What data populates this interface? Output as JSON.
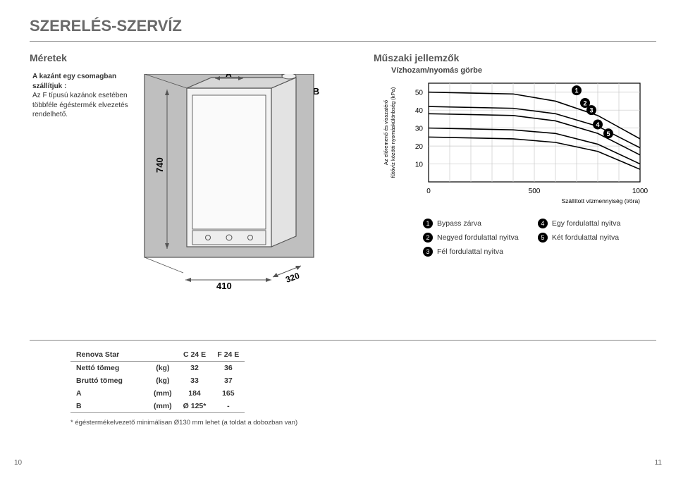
{
  "page_title": "SZERELÉS-SZERVÍZ",
  "section_left": "Méretek",
  "section_right": "Műszaki jellemzők",
  "subtitle_right": "Vízhozam/nyomás görbe",
  "intro_html_parts": {
    "bold1": "A kazánt egy csomagban",
    "bold2": "szállítjuk :",
    "rest": "Az F típusú kazánok esetében többféle égéstermék elvezetés rendelhető."
  },
  "ob_label": "Ø B",
  "diagram": {
    "height_label": "740",
    "depth_label": "320",
    "width_label": "410",
    "a_label": "A",
    "stroke": "#555555",
    "fill_light": "#efefef",
    "fill_mid": "#d9d9d9"
  },
  "chart": {
    "y_label": "Az előremenő és visszatérő\nfűtővíz közötti nyomáskülönbség (kPa)",
    "x_label": "Szállított vízmennyiség (l/óra)",
    "y_ticks": [
      10,
      20,
      30,
      40,
      50
    ],
    "x_ticks": [
      0,
      500,
      1000
    ],
    "xlim": [
      0,
      1000
    ],
    "ylim": [
      0,
      55
    ],
    "grid_color": "#c8c8c8",
    "axis_color": "#000000",
    "curve_color": "#000000",
    "curve_width": 1.6,
    "label_fontsize": 8,
    "tick_fontsize": 10,
    "curves": [
      {
        "badge": "1",
        "bx": 700,
        "by": 51,
        "points": [
          [
            0,
            50
          ],
          [
            400,
            49
          ],
          [
            600,
            45
          ],
          [
            800,
            37
          ],
          [
            1000,
            24
          ]
        ]
      },
      {
        "badge": "2",
        "bx": 740,
        "by": 44,
        "points": [
          [
            0,
            42
          ],
          [
            400,
            41
          ],
          [
            600,
            38
          ],
          [
            800,
            31
          ],
          [
            1000,
            19
          ]
        ]
      },
      {
        "badge": "3",
        "bx": 770,
        "by": 40,
        "points": [
          [
            0,
            38
          ],
          [
            400,
            37
          ],
          [
            600,
            34
          ],
          [
            800,
            27
          ],
          [
            1000,
            15
          ]
        ]
      },
      {
        "badge": "4",
        "bx": 800,
        "by": 32,
        "points": [
          [
            0,
            30
          ],
          [
            400,
            29
          ],
          [
            600,
            27
          ],
          [
            800,
            21
          ],
          [
            1000,
            10
          ]
        ]
      },
      {
        "badge": "5",
        "bx": 850,
        "by": 27,
        "points": [
          [
            0,
            25
          ],
          [
            400,
            24
          ],
          [
            600,
            22
          ],
          [
            800,
            17
          ],
          [
            1000,
            7
          ]
        ]
      }
    ]
  },
  "legend": {
    "items_left": [
      {
        "n": "1",
        "label": "Bypass zárva"
      },
      {
        "n": "2",
        "label": "Negyed fordulattal nyitva"
      },
      {
        "n": "3",
        "label": "Fél fordulattal nyitva"
      }
    ],
    "items_right": [
      {
        "n": "4",
        "label": "Egy fordulattal nyitva"
      },
      {
        "n": "5",
        "label": "Két fordulattal nyitva"
      }
    ]
  },
  "table": {
    "title": "Renova Star",
    "cols": [
      "C 24 E",
      "F 24 E"
    ],
    "rows": [
      {
        "label": "Nettó tömeg",
        "unit": "(kg)",
        "vals": [
          "32",
          "36"
        ],
        "bold": true
      },
      {
        "label": "Bruttó tömeg",
        "unit": "(kg)",
        "vals": [
          "33",
          "37"
        ],
        "bold": true
      },
      {
        "label": "A",
        "unit": "(mm)",
        "vals": [
          "184",
          "165"
        ],
        "bold": true
      },
      {
        "label": "B",
        "unit": "(mm)",
        "vals": [
          "Ø 125*",
          "-"
        ],
        "bold": true
      }
    ]
  },
  "footnote": "* égéstermékelvezető minimálisan Ø130 mm lehet (a toldat a dobozban van)",
  "page_left": "10",
  "page_right": "11"
}
